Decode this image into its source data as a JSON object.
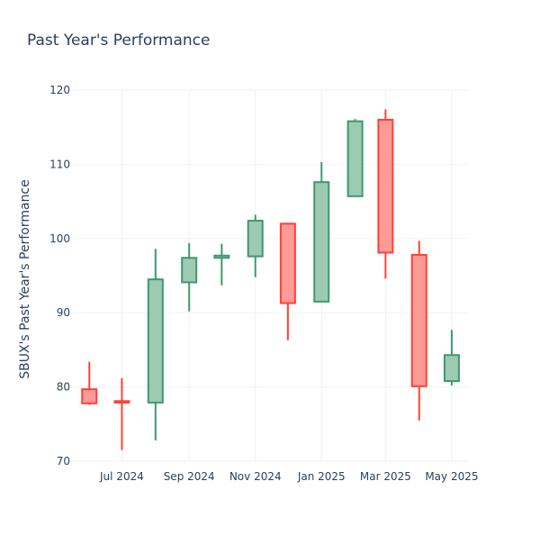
{
  "chart_data": {
    "type": "candlestick",
    "title": "Past Year's Performance",
    "xlabel": "",
    "ylabel": "SBUX's Past Year's Performance",
    "ylim": [
      70,
      120
    ],
    "yticks": [
      70,
      80,
      90,
      100,
      110,
      120
    ],
    "xticks": [
      {
        "label": "Jul 2024",
        "date": "2024-07-01"
      },
      {
        "label": "Sep 2024",
        "date": "2024-09-01"
      },
      {
        "label": "Nov 2024",
        "date": "2024-11-01"
      },
      {
        "label": "Jan 2025",
        "date": "2025-01-01"
      },
      {
        "label": "Mar 2025",
        "date": "2025-03-01"
      },
      {
        "label": "May 2025",
        "date": "2025-05-01"
      }
    ],
    "xlim": [
      "2024-05-16",
      "2025-05-16"
    ],
    "grid": true,
    "increasing_color": "#3d9970",
    "increasing_fill": "#9ecab2",
    "decreasing_color": "#ff4136",
    "decreasing_fill": "#ff9a96",
    "candles": [
      {
        "date": "2024-06-01",
        "open": 79.7,
        "high": 83.4,
        "low": 77.6,
        "close": 77.8
      },
      {
        "date": "2024-07-01",
        "open": 78.1,
        "high": 81.2,
        "low": 71.5,
        "close": 77.9
      },
      {
        "date": "2024-08-01",
        "open": 77.9,
        "high": 98.6,
        "low": 72.8,
        "close": 94.5
      },
      {
        "date": "2024-09-01",
        "open": 94.1,
        "high": 99.4,
        "low": 90.2,
        "close": 97.4
      },
      {
        "date": "2024-10-01",
        "open": 97.4,
        "high": 99.3,
        "low": 93.7,
        "close": 97.7
      },
      {
        "date": "2024-11-01",
        "open": 97.6,
        "high": 103.2,
        "low": 94.8,
        "close": 102.4
      },
      {
        "date": "2024-12-01",
        "open": 102.0,
        "high": 102.0,
        "low": 86.3,
        "close": 91.3
      },
      {
        "date": "2025-01-01",
        "open": 91.5,
        "high": 110.3,
        "low": 91.4,
        "close": 107.6
      },
      {
        "date": "2025-02-01",
        "open": 105.7,
        "high": 116.1,
        "low": 105.6,
        "close": 115.8
      },
      {
        "date": "2025-03-01",
        "open": 116.0,
        "high": 117.4,
        "low": 94.6,
        "close": 98.1
      },
      {
        "date": "2025-04-01",
        "open": 97.8,
        "high": 99.7,
        "low": 75.5,
        "close": 80.1
      },
      {
        "date": "2025-05-01",
        "open": 80.8,
        "high": 87.7,
        "low": 80.2,
        "close": 84.3
      }
    ]
  }
}
